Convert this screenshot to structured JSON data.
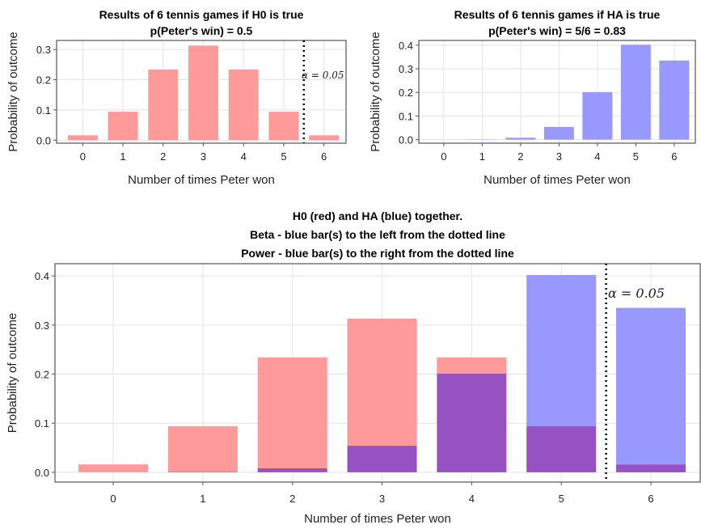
{
  "chart_data": [
    {
      "type": "bar",
      "title": [
        "Results of 6 tennis games if H0 is true",
        "p(Peter's win) = 0.5"
      ],
      "xlabel": "Number of times Peter won",
      "ylabel": "Probability of outcome",
      "categories": [
        "0",
        "1",
        "2",
        "3",
        "4",
        "5",
        "6"
      ],
      "x": [
        0,
        1,
        2,
        3,
        4,
        5,
        6
      ],
      "series": [
        {
          "color": "#ff9a9a",
          "values": [
            0.016,
            0.094,
            0.234,
            0.313,
            0.234,
            0.094,
            0.016
          ]
        }
      ],
      "ylim": [
        -0.01,
        0.33
      ],
      "yticks": [
        0.0,
        0.1,
        0.2,
        0.3
      ],
      "ytick_labels": [
        "0.0",
        "0.1",
        "0.2",
        "0.3"
      ],
      "grid": true,
      "cutoff_x": 5.5,
      "annotation": "α = 0.05"
    },
    {
      "type": "bar",
      "title": [
        "Results of 6 tennis games if HA is true",
        "p(Peter's win) = 5/6 = 0.83"
      ],
      "xlabel": "Number of times Peter won",
      "ylabel": "Probability of outcome",
      "categories": [
        "0",
        "1",
        "2",
        "3",
        "4",
        "5",
        "6"
      ],
      "x": [
        0,
        1,
        2,
        3,
        4,
        5,
        6
      ],
      "series": [
        {
          "color": "#9898ff",
          "values": [
            0.0,
            0.001,
            0.008,
            0.054,
            0.201,
            0.402,
            0.335
          ]
        }
      ],
      "ylim": [
        -0.015,
        0.42
      ],
      "yticks": [
        0.0,
        0.1,
        0.2,
        0.3,
        0.4
      ],
      "ytick_labels": [
        "0.0",
        "0.1",
        "0.2",
        "0.3",
        "0.4"
      ],
      "grid": true
    },
    {
      "type": "bar",
      "title": [
        "H0 (red) and HA (blue) together.",
        "Beta - blue bar(s) to the left from the dotted line",
        "Power - blue bar(s) to the right from the dotted line"
      ],
      "xlabel": "Number of times Peter won",
      "ylabel": "Probability of outcome",
      "categories": [
        "0",
        "1",
        "2",
        "3",
        "4",
        "5",
        "6"
      ],
      "x": [
        0,
        1,
        2,
        3,
        4,
        5,
        6
      ],
      "series": [
        {
          "color": "#ff9a9a",
          "values": [
            0.016,
            0.094,
            0.234,
            0.313,
            0.234,
            0.094,
            0.016
          ]
        },
        {
          "color": "#9898ff",
          "values": [
            0.0,
            0.001,
            0.008,
            0.054,
            0.201,
            0.402,
            0.335
          ]
        }
      ],
      "overlap_color": "#9652c2",
      "ylim": [
        -0.02,
        0.425
      ],
      "yticks": [
        0.0,
        0.1,
        0.2,
        0.3,
        0.4
      ],
      "ytick_labels": [
        "0.0",
        "0.1",
        "0.2",
        "0.3",
        "0.4"
      ],
      "grid": true,
      "cutoff_x": 5.5,
      "annotation": "α = 0.05"
    }
  ]
}
